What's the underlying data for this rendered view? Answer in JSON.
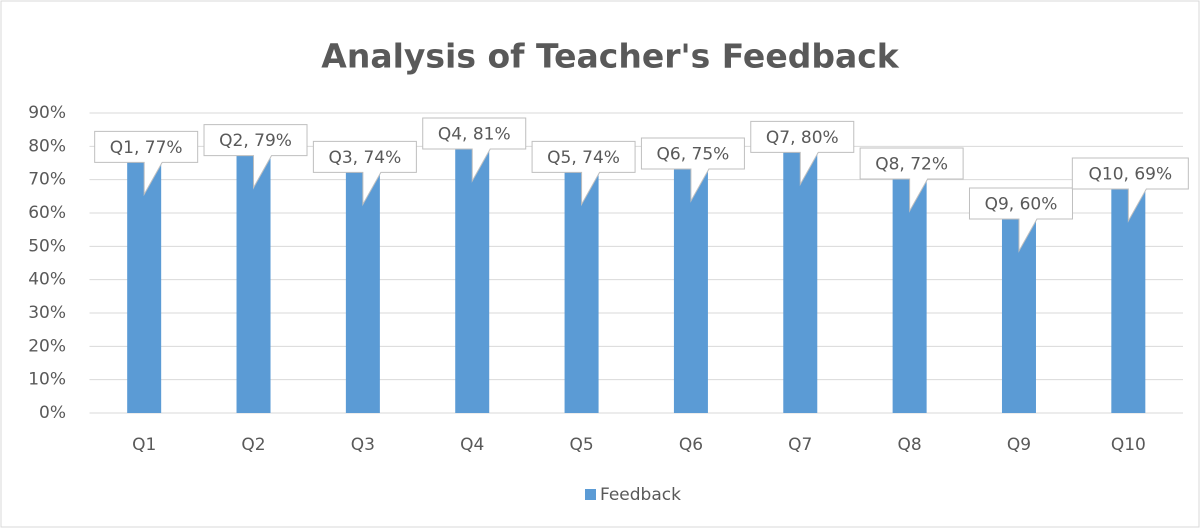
{
  "chart_data": {
    "type": "bar",
    "title": "Analysis of Teacher's Feedback",
    "categories": [
      "Q1",
      "Q2",
      "Q3",
      "Q4",
      "Q5",
      "Q6",
      "Q7",
      "Q8",
      "Q9",
      "Q10"
    ],
    "series": [
      {
        "name": "Feedback",
        "color": "#5b9bd5",
        "values": [
          77,
          79,
          74,
          81,
          74,
          75,
          80,
          72,
          60,
          69
        ],
        "value_labels": [
          "Q1, 77%",
          "Q2, 79%",
          "Q3, 74%",
          "Q4, 81%",
          "Q5, 74%",
          "Q6, 75%",
          "Q7, 80%",
          "Q8, 72%",
          "Q9, 60%",
          "Q10, 69%"
        ]
      }
    ],
    "ylim": [
      0,
      90
    ],
    "yticks": [
      {
        "value": 0,
        "label": "0%"
      },
      {
        "value": 10,
        "label": "10%"
      },
      {
        "value": 20,
        "label": "20%"
      },
      {
        "value": 30,
        "label": "30%"
      },
      {
        "value": 40,
        "label": "40%"
      },
      {
        "value": 50,
        "label": "50%"
      },
      {
        "value": 60,
        "label": "60%"
      },
      {
        "value": 70,
        "label": "70%"
      },
      {
        "value": 80,
        "label": "80%"
      },
      {
        "value": 90,
        "label": "90%"
      }
    ],
    "grid": true,
    "legend": "bottom"
  }
}
